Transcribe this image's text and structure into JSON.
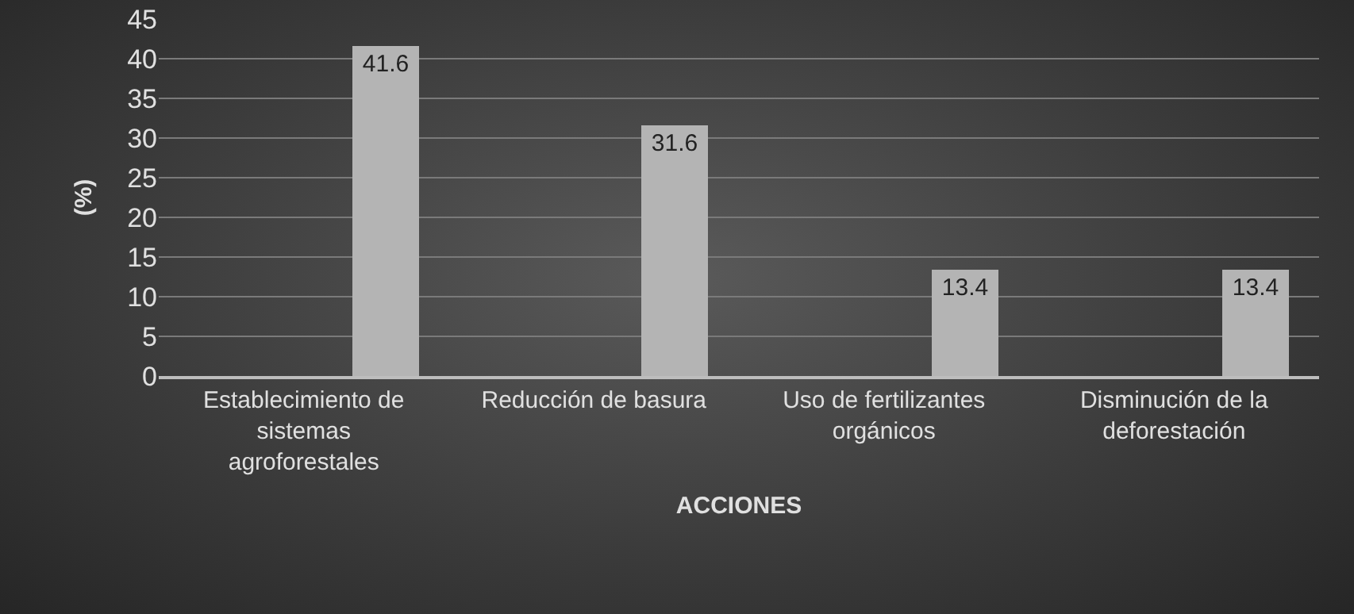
{
  "chart_data": {
    "type": "bar",
    "xlabel": "ACCIONES",
    "ylabel": "(%)",
    "categories": [
      "Establecimiento de sistemas agroforestales",
      "Reducción de basura",
      "Uso de fertilizantes orgánicos",
      "Disminución de la deforestación"
    ],
    "values": [
      41.6,
      31.6,
      13.4,
      13.4
    ],
    "color": "#b4b4b4",
    "ylim": [
      0,
      45
    ],
    "yticks": [
      0,
      5,
      10,
      15,
      20,
      25,
      30,
      35,
      40,
      45
    ],
    "grid": "y",
    "data_labels": true
  }
}
